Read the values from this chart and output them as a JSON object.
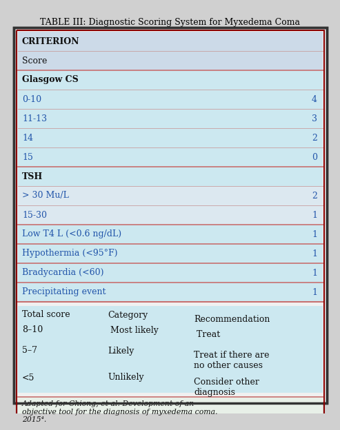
{
  "title": "TABLE III: Diagnostic Scoring System for Myxedema Coma",
  "bg_color_light": "#cce8f0",
  "bg_color_lighter": "#daeef5",
  "border_color": "#8B0000",
  "line_color_thick": "#c87070",
  "line_color_thin": "#c8a0a0",
  "text_color_black": "#111111",
  "text_color_blue": "#2255aa",
  "fig_bg": "#d0d0d0",
  "outer_bg": "#f5f5f5",
  "rows": [
    {
      "col1": "CRITERION",
      "col2": "",
      "style": "header_bold",
      "bg": "lighter"
    },
    {
      "col1": "Score",
      "col2": "",
      "style": "header_normal",
      "bg": "lighter"
    },
    {
      "col1": "Glasgow CS",
      "col2": "",
      "style": "subheader",
      "bg": "light",
      "sep_above": true
    },
    {
      "col1": "0-10",
      "col2": "4",
      "style": "data_blue",
      "bg": "light"
    },
    {
      "col1": "11-13",
      "col2": "3",
      "style": "data_blue",
      "bg": "light"
    },
    {
      "col1": "14",
      "col2": "2",
      "style": "data_blue",
      "bg": "light"
    },
    {
      "col1": "15",
      "col2": "0",
      "style": "data_blue",
      "bg": "light"
    },
    {
      "col1": "TSH",
      "col2": "",
      "style": "subheader",
      "bg": "lighter2",
      "sep_above": true
    },
    {
      "col1": "> 30 Mu/L",
      "col2": "2",
      "style": "data_blue2",
      "bg": "lighter2"
    },
    {
      "col1": "15-30",
      "col2": "1",
      "style": "data_blue2",
      "bg": "lighter2"
    },
    {
      "col1": "Low T4 L (<0.6 ng/dL)",
      "col2": "1",
      "style": "data_blue",
      "bg": "light",
      "sep_above": true
    },
    {
      "col1": "Hypothermia (<95°F)",
      "col2": "1",
      "style": "data_blue",
      "bg": "light",
      "sep_above": true
    },
    {
      "col1": "Bradycardia (<60)",
      "col2": "1",
      "style": "data_blue",
      "bg": "light",
      "sep_above": true
    },
    {
      "col1": "Precipitating event",
      "col2": "1",
      "style": "data_blue",
      "bg": "light",
      "sep_above": true
    }
  ],
  "summary": [
    {
      "c1": "Total score",
      "c2": "Category",
      "c3": "Recommendation"
    },
    {
      "c1": "8–10",
      "c2": " Most likely",
      "c3": " Treat"
    },
    {
      "c1": "5–7",
      "c2": "Likely",
      "c3": "Treat if there are\nno other causes"
    },
    {
      "c1": "<5",
      "c2": "Unlikely",
      "c3": "Consider other\ndiagnosis"
    }
  ],
  "footnote": "Adapted for Chiong, et al. Development of an\nobjective tool for the diagnosis of myxedema coma.\n2015⁴."
}
